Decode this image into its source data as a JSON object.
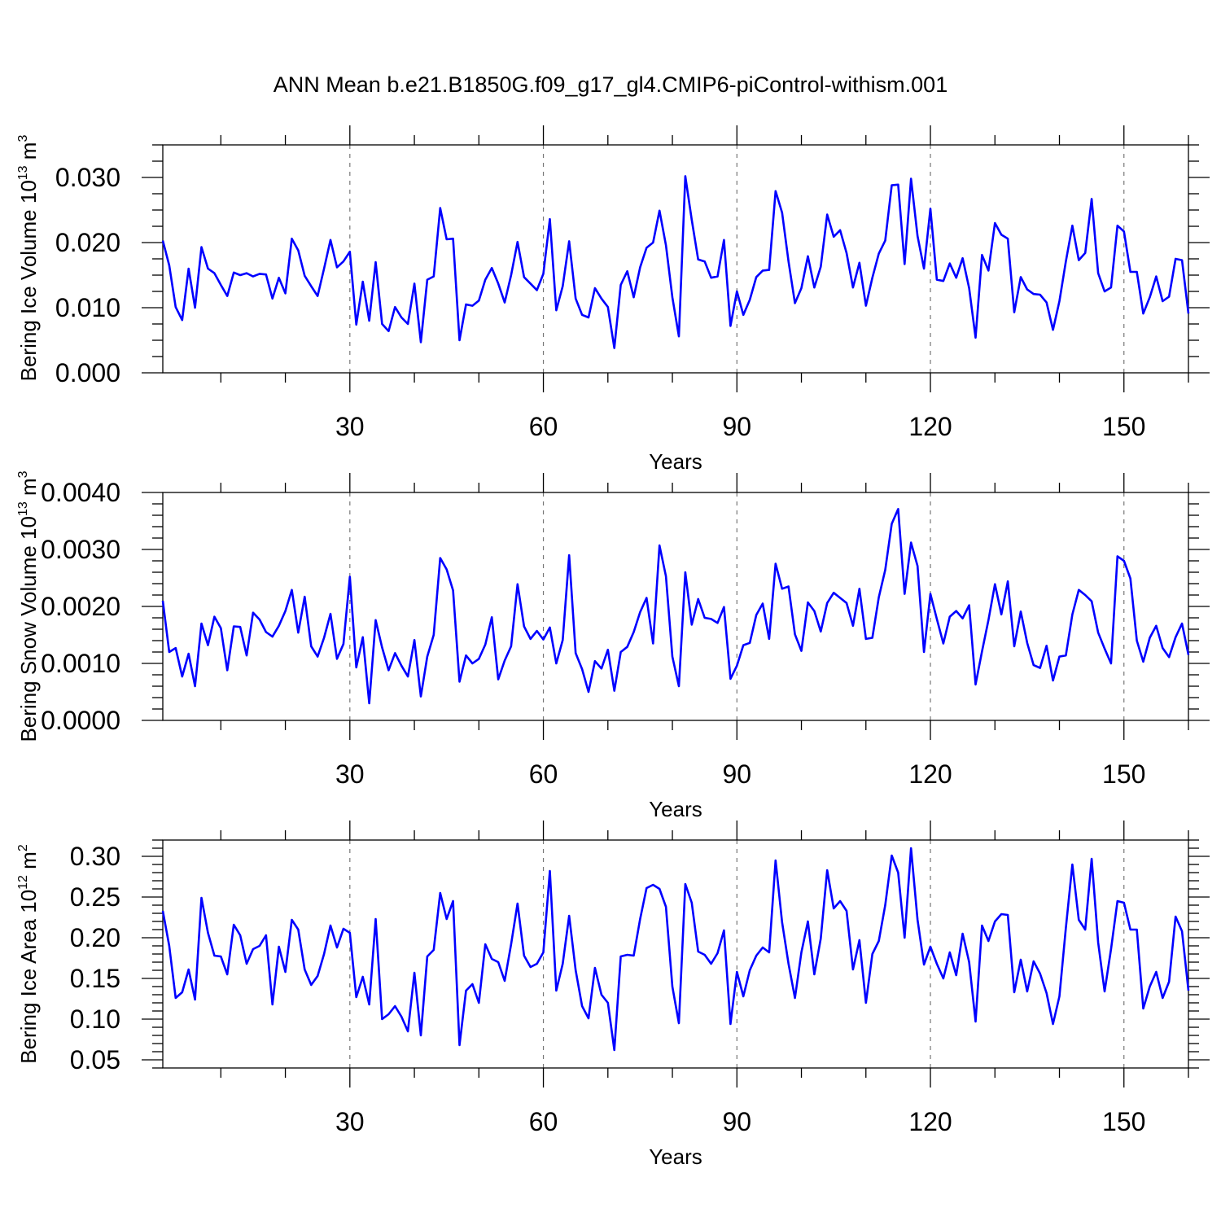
{
  "title": "ANN Mean b.e21.B1850G.f09_g17_gl4.CMIP6-piControl-withism.001",
  "chart_data": [
    {
      "type": "line",
      "xlabel": "Years",
      "ylabel": "Bering Ice Volume 10",
      "ylabel_exp": "13",
      "ylabel_unit": " m",
      "ylabel_unit_exp": "3",
      "xlim": [
        1,
        160
      ],
      "ylim": [
        0,
        0.035
      ],
      "xticks": [
        30,
        60,
        90,
        120,
        150
      ],
      "xtick_labels": [
        "30",
        "60",
        "90",
        "120",
        "150"
      ],
      "yticks": [
        0,
        0.01,
        0.02,
        0.03
      ],
      "ytick_labels": [
        "0.000",
        "0.010",
        "0.020",
        "0.030"
      ],
      "grid": "dashed vertical at x ticks",
      "color": "#0000ff",
      "series": [
        {
          "values": [
            0.0203,
            0.0165,
            0.0101,
            0.0081,
            0.016,
            0.01,
            0.0193,
            0.016,
            0.0153,
            0.0135,
            0.0118,
            0.0154,
            0.015,
            0.0153,
            0.0148,
            0.0152,
            0.0151,
            0.0114,
            0.0146,
            0.0122,
            0.0206,
            0.0188,
            0.0149,
            0.0133,
            0.0118,
            0.016,
            0.0204,
            0.0162,
            0.0171,
            0.0186,
            0.0074,
            0.014,
            0.008,
            0.017,
            0.0075,
            0.0064,
            0.0101,
            0.0085,
            0.0075,
            0.0137,
            0.0047,
            0.0143,
            0.0148,
            0.0253,
            0.0205,
            0.0206,
            0.005,
            0.0105,
            0.0103,
            0.0111,
            0.0143,
            0.0161,
            0.0137,
            0.0108,
            0.015,
            0.0201,
            0.0147,
            0.0137,
            0.0127,
            0.0152,
            0.0236,
            0.0096,
            0.0133,
            0.0202,
            0.0114,
            0.0089,
            0.0085,
            0.013,
            0.0114,
            0.0101,
            0.0038,
            0.0135,
            0.0156,
            0.0116,
            0.0162,
            0.0192,
            0.02,
            0.0249,
            0.0196,
            0.0116,
            0.0056,
            0.0302,
            0.0235,
            0.0174,
            0.0171,
            0.0146,
            0.0148,
            0.0204,
            0.0072,
            0.0125,
            0.0089,
            0.0112,
            0.0147,
            0.0157,
            0.0158,
            0.0279,
            0.0246,
            0.0171,
            0.0107,
            0.013,
            0.0179,
            0.0131,
            0.0163,
            0.0243,
            0.0209,
            0.0219,
            0.0184,
            0.0131,
            0.0169,
            0.0103,
            0.0146,
            0.0183,
            0.0203,
            0.0288,
            0.0289,
            0.0167,
            0.0298,
            0.021,
            0.016,
            0.0252,
            0.0143,
            0.0141,
            0.0168,
            0.0146,
            0.0176,
            0.013,
            0.0054,
            0.0181,
            0.0157,
            0.023,
            0.0212,
            0.0206,
            0.0093,
            0.0147,
            0.0128,
            0.0121,
            0.012,
            0.0108,
            0.0066,
            0.011,
            0.0171,
            0.0226,
            0.0173,
            0.0184,
            0.0267,
            0.0153,
            0.0125,
            0.0131,
            0.0226,
            0.0217,
            0.0155,
            0.0155,
            0.0091,
            0.0116,
            0.0148,
            0.011,
            0.0117,
            0.0175,
            0.0173,
            0.0091
          ]
        }
      ]
    },
    {
      "type": "line",
      "xlabel": "Years",
      "ylabel": "Bering Snow Volume 10",
      "ylabel_exp": "13",
      "ylabel_unit": " m",
      "ylabel_unit_exp": "3",
      "xlim": [
        1,
        160
      ],
      "ylim": [
        0,
        0.004
      ],
      "xticks": [
        30,
        60,
        90,
        120,
        150
      ],
      "xtick_labels": [
        "30",
        "60",
        "90",
        "120",
        "150"
      ],
      "yticks": [
        0,
        0.001,
        0.002,
        0.003,
        0.004
      ],
      "ytick_labels": [
        "0.0000",
        "0.0010",
        "0.0020",
        "0.0030",
        "0.0040"
      ],
      "grid": "dashed vertical at x ticks",
      "color": "#0000ff",
      "series": [
        {
          "values": [
            0.0021,
            0.0012,
            0.00127,
            0.00077,
            0.00117,
            0.0006,
            0.0017,
            0.00132,
            0.00182,
            0.00162,
            0.00088,
            0.00165,
            0.00164,
            0.00114,
            0.00189,
            0.00177,
            0.00155,
            0.00147,
            0.00166,
            0.00192,
            0.00229,
            0.00154,
            0.00217,
            0.0013,
            0.00112,
            0.00145,
            0.00187,
            0.00108,
            0.00134,
            0.00252,
            0.00093,
            0.00146,
            0.0003,
            0.00176,
            0.00128,
            0.00088,
            0.00118,
            0.00096,
            0.00077,
            0.00141,
            0.00042,
            0.00112,
            0.0015,
            0.00285,
            0.00265,
            0.00228,
            0.00068,
            0.00114,
            0.001,
            0.00108,
            0.00133,
            0.00181,
            0.00072,
            0.00105,
            0.0013,
            0.00239,
            0.00165,
            0.00143,
            0.00157,
            0.00142,
            0.00163,
            0.001,
            0.00141,
            0.0029,
            0.00118,
            0.0009,
            0.0005,
            0.00104,
            0.00091,
            0.00124,
            0.00052,
            0.0012,
            0.00129,
            0.00155,
            0.0019,
            0.00215,
            0.00135,
            0.00307,
            0.00253,
            0.00112,
            0.0006,
            0.0026,
            0.00168,
            0.00213,
            0.0018,
            0.00178,
            0.00171,
            0.00199,
            0.00073,
            0.00096,
            0.00132,
            0.00136,
            0.00185,
            0.00205,
            0.00143,
            0.00275,
            0.00231,
            0.00235,
            0.00151,
            0.00122,
            0.00207,
            0.00192,
            0.00156,
            0.00206,
            0.00224,
            0.00215,
            0.00206,
            0.00166,
            0.00231,
            0.00143,
            0.00145,
            0.00216,
            0.00264,
            0.00345,
            0.00371,
            0.00222,
            0.00312,
            0.00271,
            0.0012,
            0.00222,
            0.00178,
            0.00135,
            0.00182,
            0.00192,
            0.00179,
            0.00202,
            0.00063,
            0.00121,
            0.00176,
            0.00239,
            0.00186,
            0.00244,
            0.0013,
            0.00191,
            0.00136,
            0.00097,
            0.00092,
            0.00131,
            0.0007,
            0.00112,
            0.00114,
            0.00186,
            0.00229,
            0.0022,
            0.00209,
            0.00154,
            0.00126,
            0.001,
            0.00288,
            0.0028,
            0.00249,
            0.0014,
            0.00103,
            0.00145,
            0.00166,
            0.00127,
            0.00111,
            0.00146,
            0.0017,
            0.00115
          ]
        }
      ]
    },
    {
      "type": "line",
      "xlabel": "Years",
      "ylabel": "Bering Ice Area 10",
      "ylabel_exp": "12",
      "ylabel_unit": " m",
      "ylabel_unit_exp": "2",
      "xlim": [
        1,
        160
      ],
      "ylim": [
        0.04,
        0.32
      ],
      "xticks": [
        30,
        60,
        90,
        120,
        150
      ],
      "xtick_labels": [
        "30",
        "60",
        "90",
        "120",
        "150"
      ],
      "yticks": [
        0.05,
        0.1,
        0.15,
        0.2,
        0.25,
        0.3
      ],
      "ytick_labels": [
        "0.05",
        "0.10",
        "0.15",
        "0.20",
        "0.25",
        "0.30"
      ],
      "grid": "dashed vertical at x ticks",
      "color": "#0000ff",
      "series": [
        {
          "values": [
            0.233,
            0.19,
            0.126,
            0.133,
            0.161,
            0.124,
            0.249,
            0.206,
            0.178,
            0.177,
            0.155,
            0.216,
            0.203,
            0.168,
            0.186,
            0.19,
            0.203,
            0.118,
            0.189,
            0.158,
            0.222,
            0.21,
            0.161,
            0.142,
            0.153,
            0.18,
            0.215,
            0.188,
            0.211,
            0.206,
            0.127,
            0.152,
            0.118,
            0.223,
            0.1,
            0.106,
            0.116,
            0.103,
            0.085,
            0.157,
            0.08,
            0.177,
            0.185,
            0.255,
            0.223,
            0.245,
            0.068,
            0.135,
            0.143,
            0.12,
            0.192,
            0.174,
            0.17,
            0.147,
            0.192,
            0.242,
            0.178,
            0.164,
            0.168,
            0.182,
            0.282,
            0.135,
            0.168,
            0.227,
            0.16,
            0.116,
            0.101,
            0.163,
            0.13,
            0.12,
            0.062,
            0.177,
            0.179,
            0.178,
            0.223,
            0.261,
            0.265,
            0.26,
            0.238,
            0.14,
            0.095,
            0.266,
            0.243,
            0.183,
            0.179,
            0.168,
            0.181,
            0.209,
            0.094,
            0.158,
            0.128,
            0.16,
            0.178,
            0.188,
            0.182,
            0.295,
            0.219,
            0.168,
            0.126,
            0.182,
            0.22,
            0.155,
            0.199,
            0.283,
            0.236,
            0.245,
            0.233,
            0.161,
            0.197,
            0.12,
            0.18,
            0.196,
            0.24,
            0.301,
            0.28,
            0.2,
            0.31,
            0.222,
            0.167,
            0.189,
            0.168,
            0.15,
            0.182,
            0.154,
            0.205,
            0.17,
            0.097,
            0.215,
            0.196,
            0.22,
            0.229,
            0.228,
            0.133,
            0.173,
            0.134,
            0.171,
            0.156,
            0.132,
            0.094,
            0.128,
            0.212,
            0.29,
            0.222,
            0.21,
            0.297,
            0.194,
            0.134,
            0.186,
            0.245,
            0.243,
            0.21,
            0.21,
            0.113,
            0.14,
            0.158,
            0.126,
            0.146,
            0.226,
            0.208,
            0.135
          ]
        }
      ]
    }
  ]
}
